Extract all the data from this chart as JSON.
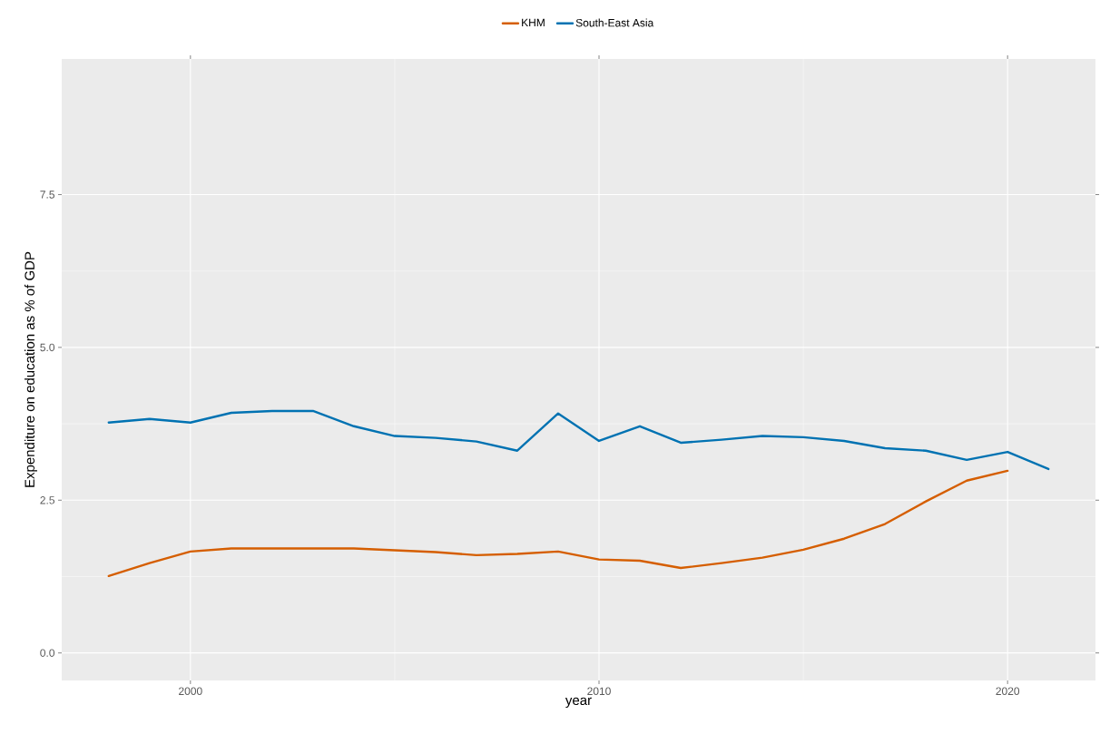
{
  "chart_data": {
    "type": "line",
    "xlabel": "year",
    "ylabel": "Expenditure on education as % of GDP",
    "x": [
      1998,
      1999,
      2000,
      2001,
      2002,
      2003,
      2004,
      2005,
      2006,
      2007,
      2008,
      2009,
      2010,
      2011,
      2012,
      2013,
      2014,
      2015,
      2016,
      2017,
      2018,
      2019,
      2020,
      2021
    ],
    "series": [
      {
        "name": "KHM",
        "color": "#d55e00",
        "values": [
          1.26,
          1.47,
          1.66,
          1.71,
          1.71,
          1.71,
          1.71,
          1.68,
          1.65,
          1.6,
          1.62,
          1.66,
          1.53,
          1.51,
          1.39,
          1.47,
          1.56,
          1.69,
          1.87,
          2.11,
          2.48,
          2.82,
          2.98,
          null
        ]
      },
      {
        "name": "South-East Asia",
        "color": "#0072b2",
        "values": [
          3.77,
          3.83,
          3.77,
          3.93,
          3.96,
          3.96,
          3.71,
          3.55,
          3.52,
          3.46,
          3.31,
          3.92,
          3.47,
          3.71,
          3.44,
          3.49,
          3.55,
          3.53,
          3.47,
          3.35,
          3.31,
          3.16,
          3.29,
          3.01
        ]
      }
    ],
    "xlim": [
      1996.85,
      2022.15
    ],
    "ylim": [
      -0.45,
      9.72
    ],
    "xticks": [
      2000,
      2010,
      2020
    ],
    "yticks": [
      {
        "value": 0,
        "label": "0.0"
      },
      {
        "value": 2.5,
        "label": "2.5"
      },
      {
        "value": 5,
        "label": "5.0"
      },
      {
        "value": 7.5,
        "label": "7.5"
      }
    ],
    "grid": true,
    "legend": "top",
    "line_style": "solid",
    "marker": "none"
  }
}
